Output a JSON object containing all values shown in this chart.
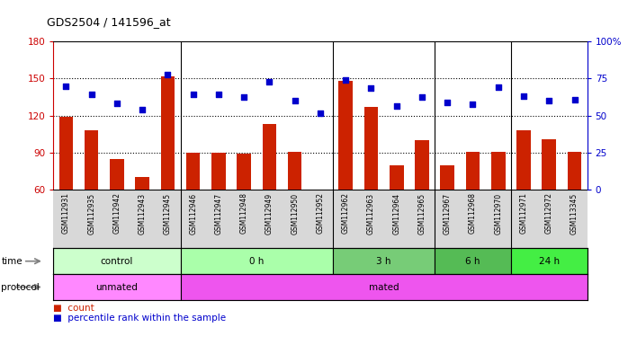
{
  "title": "GDS2504 / 141596_at",
  "samples": [
    "GSM112931",
    "GSM112935",
    "GSM112942",
    "GSM112943",
    "GSM112945",
    "GSM112946",
    "GSM112947",
    "GSM112948",
    "GSM112949",
    "GSM112950",
    "GSM112952",
    "GSM112962",
    "GSM112963",
    "GSM112964",
    "GSM112965",
    "GSM112967",
    "GSM112968",
    "GSM112970",
    "GSM112971",
    "GSM112972",
    "GSM113345"
  ],
  "count": [
    119,
    108,
    85,
    70,
    152,
    90,
    90,
    89,
    113,
    91,
    60,
    148,
    127,
    80,
    100,
    80,
    91,
    91,
    108,
    101,
    91
  ],
  "percentile": [
    144,
    137,
    130,
    125,
    153,
    137,
    137,
    135,
    147,
    132,
    122,
    149,
    142,
    128,
    135,
    131,
    129,
    143,
    136,
    132,
    133
  ],
  "ylim_left": [
    60,
    180
  ],
  "ylim_right": [
    0,
    100
  ],
  "yticks_left": [
    60,
    90,
    120,
    150,
    180
  ],
  "yticks_right": [
    0,
    25,
    50,
    75,
    100
  ],
  "ytick_right_labels": [
    "0",
    "25",
    "50",
    "75",
    "100%"
  ],
  "time_groups": [
    {
      "label": "control",
      "start": 0,
      "end": 5,
      "color": "#ccffcc"
    },
    {
      "label": "0 h",
      "start": 5,
      "end": 11,
      "color": "#aaffaa"
    },
    {
      "label": "3 h",
      "start": 11,
      "end": 15,
      "color": "#77cc77"
    },
    {
      "label": "6 h",
      "start": 15,
      "end": 18,
      "color": "#55bb55"
    },
    {
      "label": "24 h",
      "start": 18,
      "end": 21,
      "color": "#44ee44"
    }
  ],
  "protocol_groups": [
    {
      "label": "unmated",
      "start": 0,
      "end": 5,
      "color": "#ff88ff"
    },
    {
      "label": "mated",
      "start": 5,
      "end": 21,
      "color": "#ee55ee"
    }
  ],
  "bar_color": "#cc2200",
  "dot_color": "#0000cc",
  "bg_color": "#ffffff",
  "axis_color_left": "#cc0000",
  "axis_color_right": "#0000cc",
  "bar_width": 0.55,
  "group_boundaries": [
    5,
    11,
    15,
    18
  ],
  "grid_yticks": [
    90,
    120,
    150
  ],
  "xtick_area_color": "#d8d8d8"
}
